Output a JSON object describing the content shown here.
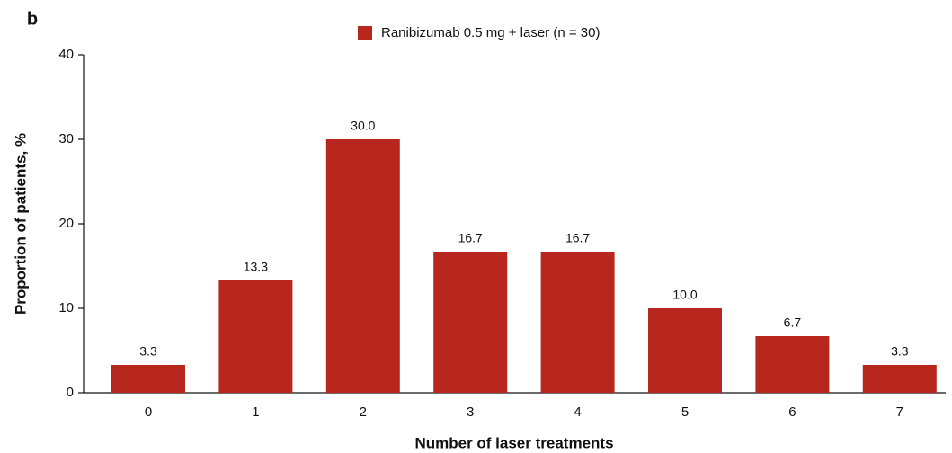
{
  "chart_data": {
    "type": "bar",
    "panel_label": "b",
    "xlabel": "Number of laser treatments",
    "ylabel": "Proportion of patients, %",
    "categories": [
      "0",
      "1",
      "2",
      "3",
      "4",
      "5",
      "6",
      "7"
    ],
    "series": [
      {
        "name": "Ranibizumab 0.5 mg + laser (n = 30)",
        "color": "#b8271d",
        "values": [
          3.3,
          13.3,
          30.0,
          16.7,
          16.7,
          10.0,
          6.7,
          3.3
        ],
        "value_labels": [
          "3.3",
          "13.3",
          "30.0",
          "16.7",
          "16.7",
          "10.0",
          "6.7",
          "3.3"
        ]
      }
    ],
    "ylim": [
      0,
      40
    ],
    "yticks": [
      0,
      10,
      20,
      30,
      40
    ],
    "legend": "top"
  }
}
